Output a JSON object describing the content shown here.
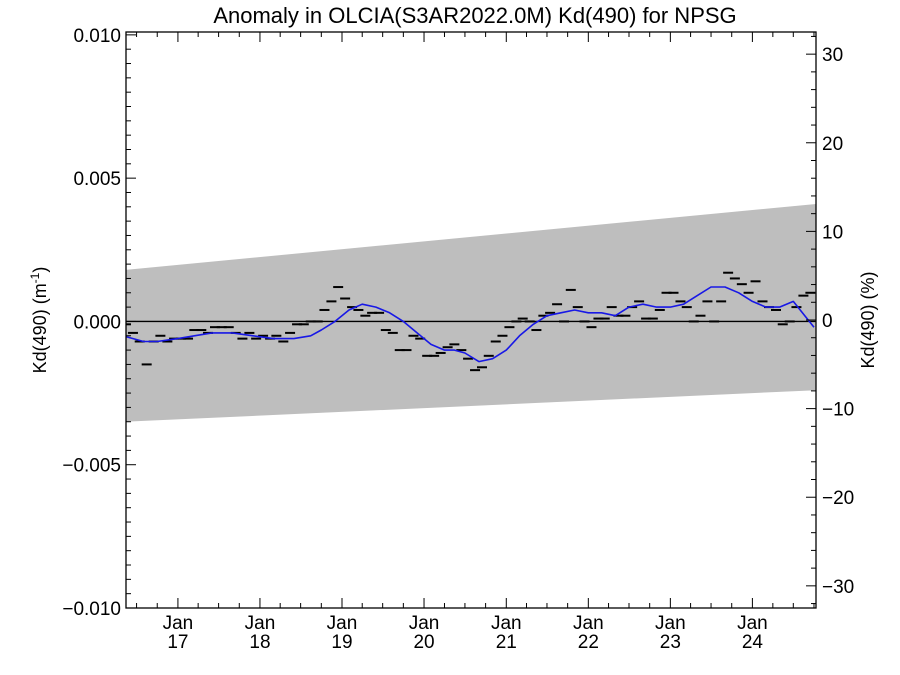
{
  "chart_data": {
    "type": "line",
    "title": "Anomaly in OLCIA(S3AR2022.0M) Kd(490) for NPSG",
    "ylabel_left": "Kd(490) (m",
    "ylabel_left_sup": "-1",
    "ylabel_left_close": ")",
    "ylabel_right": "Kd(490) (%)",
    "x_range": [
      "2016-05-15",
      "2024-10-10"
    ],
    "ylim": [
      -0.01,
      0.0101
    ],
    "ylim_right": [
      -32.5,
      32.5
    ],
    "left_ticks": [
      {
        "value": 0.01,
        "label": "0.010"
      },
      {
        "value": 0.005,
        "label": "0.005"
      },
      {
        "value": 0.0,
        "label": "0.000"
      },
      {
        "value": -0.005,
        "label": "−0.005"
      },
      {
        "value": -0.01,
        "label": "−0.010"
      }
    ],
    "right_ticks": [
      {
        "value": 30,
        "label": "30"
      },
      {
        "value": 20,
        "label": "20"
      },
      {
        "value": 10,
        "label": "10"
      },
      {
        "value": 0,
        "label": "0"
      },
      {
        "value": -10,
        "label": "−10"
      },
      {
        "value": -20,
        "label": "−20"
      },
      {
        "value": -30,
        "label": "−30"
      }
    ],
    "x_ticks": [
      {
        "date": "2017-01-01",
        "month": "Jan",
        "year": "17"
      },
      {
        "date": "2018-01-01",
        "month": "Jan",
        "year": "18"
      },
      {
        "date": "2019-01-01",
        "month": "Jan",
        "year": "19"
      },
      {
        "date": "2020-01-01",
        "month": "Jan",
        "year": "20"
      },
      {
        "date": "2021-01-01",
        "month": "Jan",
        "year": "21"
      },
      {
        "date": "2022-01-01",
        "month": "Jan",
        "year": "22"
      },
      {
        "date": "2023-01-01",
        "month": "Jan",
        "year": "23"
      },
      {
        "date": "2024-01-01",
        "month": "Jan",
        "year": "24"
      }
    ],
    "uncertainty_band": {
      "x": [
        "2016-05-15",
        "2024-10-10"
      ],
      "upper": [
        0.0018,
        0.0041
      ],
      "lower": [
        -0.0035,
        -0.0024
      ]
    },
    "reference_line_y": 0.0,
    "monthly_anomalies": {
      "x": [
        "2016-05-15",
        "2016-06-15",
        "2016-07-15",
        "2016-08-15",
        "2016-09-15",
        "2016-10-15",
        "2016-11-15",
        "2016-12-15",
        "2017-01-15",
        "2017-02-15",
        "2017-03-15",
        "2017-04-15",
        "2017-05-15",
        "2017-06-15",
        "2017-07-15",
        "2017-08-15",
        "2017-09-15",
        "2017-10-15",
        "2017-11-15",
        "2017-12-15",
        "2018-01-15",
        "2018-02-15",
        "2018-03-15",
        "2018-04-15",
        "2018-05-15",
        "2018-06-15",
        "2018-07-15",
        "2018-08-15",
        "2018-09-15",
        "2018-10-15",
        "2018-11-15",
        "2018-12-15",
        "2019-01-15",
        "2019-02-15",
        "2019-03-15",
        "2019-04-15",
        "2019-05-15",
        "2019-06-15",
        "2019-07-15",
        "2019-08-15",
        "2019-09-15",
        "2019-10-15",
        "2019-11-15",
        "2019-12-15",
        "2020-01-15",
        "2020-02-15",
        "2020-03-15",
        "2020-04-15",
        "2020-05-15",
        "2020-06-15",
        "2020-07-15",
        "2020-08-15",
        "2020-09-15",
        "2020-10-15",
        "2020-11-15",
        "2020-12-15",
        "2021-01-15",
        "2021-02-15",
        "2021-03-15",
        "2021-04-15",
        "2021-05-15",
        "2021-06-15",
        "2021-07-15",
        "2021-08-15",
        "2021-09-15",
        "2021-10-15",
        "2021-11-15",
        "2021-12-15",
        "2022-01-15",
        "2022-02-15",
        "2022-03-15",
        "2022-04-15",
        "2022-05-15",
        "2022-06-15",
        "2022-07-15",
        "2022-08-15",
        "2022-09-15",
        "2022-10-15",
        "2022-11-15",
        "2022-12-15",
        "2023-01-15",
        "2023-02-15",
        "2023-03-15",
        "2023-04-15",
        "2023-05-15",
        "2023-06-15",
        "2023-07-15",
        "2023-08-15",
        "2023-09-15",
        "2023-10-15",
        "2023-11-15",
        "2023-12-15",
        "2024-01-15",
        "2024-02-15",
        "2024-03-15",
        "2024-04-15",
        "2024-05-15",
        "2024-06-15",
        "2024-07-15",
        "2024-08-15",
        "2024-09-15"
      ],
      "y": [
        -0.0001,
        -0.0004,
        -0.0007,
        -0.0015,
        -0.0007,
        -0.0005,
        -0.0007,
        -0.0006,
        -0.0006,
        -0.0006,
        -0.0003,
        -0.0003,
        -0.0004,
        -0.0002,
        -0.0002,
        -0.0002,
        -0.0004,
        -0.0006,
        -0.0004,
        -0.0006,
        -0.0005,
        -0.0006,
        -0.0005,
        -0.0007,
        -0.0004,
        -0.0001,
        -0.0001,
        0.0,
        0.0,
        0.0004,
        0.0007,
        0.0012,
        0.0008,
        0.0005,
        0.0004,
        0.0002,
        0.0003,
        0.0003,
        -0.0003,
        -0.0004,
        -0.001,
        -0.001,
        -0.0005,
        -0.0006,
        -0.0012,
        -0.0012,
        -0.0011,
        -0.0009,
        -0.0008,
        -0.001,
        -0.0013,
        -0.0017,
        -0.0016,
        -0.0012,
        -0.0007,
        -0.0005,
        -0.0002,
        0.0,
        0.0001,
        0.0,
        -0.0003,
        0.0002,
        0.0003,
        0.0006,
        0.0,
        0.0011,
        0.0005,
        0.0,
        -0.0002,
        0.0001,
        0.0001,
        0.0005,
        0.0002,
        0.0002,
        0.0005,
        0.0007,
        0.0001,
        0.0001,
        0.0004,
        0.001,
        0.001,
        0.0007,
        0.0005,
        0.0,
        0.0002,
        0.0007,
        0.0,
        0.0007,
        0.0017,
        0.0015,
        0.0013,
        0.001,
        0.0014,
        0.0007,
        0.0005,
        0.0004,
        -0.0001,
        0.0,
        0.0005,
        0.0009,
        0.001
      ]
    },
    "smoothed_anomaly": {
      "x": [
        "2016-05-01",
        "2016-08-01",
        "2016-10-01",
        "2017-01-01",
        "2017-03-15",
        "2017-06-01",
        "2017-09-01",
        "2017-12-01",
        "2018-03-01",
        "2018-06-01",
        "2018-08-15",
        "2018-10-01",
        "2018-12-01",
        "2019-02-01",
        "2019-04-01",
        "2019-06-01",
        "2019-08-01",
        "2019-10-01",
        "2019-12-01",
        "2020-02-01",
        "2020-04-01",
        "2020-05-15",
        "2020-07-01",
        "2020-09-01",
        "2020-11-01",
        "2021-01-01",
        "2021-03-01",
        "2021-05-01",
        "2021-07-01",
        "2021-09-01",
        "2021-11-01",
        "2022-01-01",
        "2022-03-01",
        "2022-05-01",
        "2022-07-01",
        "2022-09-01",
        "2022-11-01",
        "2023-01-01",
        "2023-03-01",
        "2023-05-01",
        "2023-07-01",
        "2023-09-01",
        "2023-11-01",
        "2024-01-01",
        "2024-03-01",
        "2024-05-01",
        "2024-07-01",
        "2024-10-01"
      ],
      "y": [
        -0.0005,
        -0.0007,
        -0.0007,
        -0.0006,
        -0.0005,
        -0.0004,
        -0.0004,
        -0.0005,
        -0.0006,
        -0.0006,
        -0.0005,
        -0.0003,
        0.0,
        0.0004,
        0.0006,
        0.0005,
        0.0003,
        0.0,
        -0.0004,
        -0.0008,
        -0.001,
        -0.001,
        -0.0011,
        -0.0014,
        -0.0013,
        -0.001,
        -0.0005,
        -0.0001,
        0.0002,
        0.0003,
        0.0004,
        0.0003,
        0.0003,
        0.0002,
        0.0005,
        0.0006,
        0.0005,
        0.0005,
        0.0006,
        0.0009,
        0.0012,
        0.0012,
        0.001,
        0.0007,
        0.0005,
        0.0005,
        0.0007,
        -0.0002
      ]
    },
    "band_color": "#bebebe",
    "line_color": "#1818e6",
    "marker_color": "#000000",
    "grid": false,
    "legend": "none"
  }
}
